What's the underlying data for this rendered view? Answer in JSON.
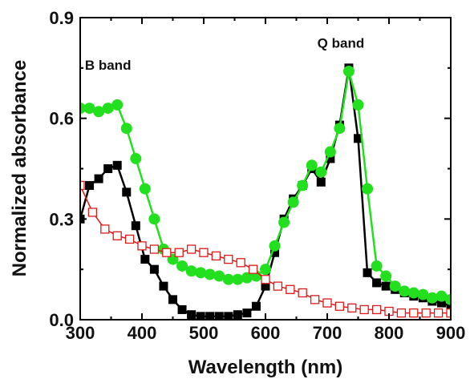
{
  "chart_data": {
    "type": "line",
    "title": "",
    "xlabel": "Wavelength (nm)",
    "ylabel": "Normalized absorbance",
    "xlim": [
      300,
      900
    ],
    "ylim": [
      0.0,
      0.9
    ],
    "x_ticks": [
      {
        "value": 300,
        "label": "300"
      },
      {
        "value": 400,
        "label": "400"
      },
      {
        "value": 500,
        "label": "500"
      },
      {
        "value": 600,
        "label": "600"
      },
      {
        "value": 700,
        "label": "700"
      },
      {
        "value": 800,
        "label": "800"
      },
      {
        "value": 900,
        "label": "900"
      }
    ],
    "y_ticks": [
      {
        "value": 0.0,
        "label": "0.0"
      },
      {
        "value": 0.3,
        "label": "0.3"
      },
      {
        "value": 0.6,
        "label": "0.6"
      },
      {
        "value": 0.9,
        "label": "0.9"
      }
    ],
    "grid": false,
    "legend": "none",
    "annotations": [
      {
        "text": "B band",
        "x": 345,
        "y": 0.745
      },
      {
        "text": "Q band",
        "x": 722,
        "y": 0.81
      }
    ],
    "series": [
      {
        "marker": "filled-square",
        "color": "#000000",
        "x": [
          300,
          315,
          330,
          345,
          360,
          375,
          390,
          405,
          420,
          435,
          450,
          465,
          480,
          495,
          510,
          525,
          540,
          555,
          570,
          585,
          600,
          615,
          630,
          645,
          660,
          675,
          690,
          705,
          720,
          735,
          750,
          765,
          780,
          795,
          810,
          825,
          840,
          855,
          870,
          885,
          900
        ],
        "y": [
          0.3,
          0.4,
          0.42,
          0.45,
          0.46,
          0.38,
          0.28,
          0.18,
          0.15,
          0.1,
          0.06,
          0.03,
          0.015,
          0.01,
          0.01,
          0.01,
          0.01,
          0.015,
          0.02,
          0.04,
          0.1,
          0.2,
          0.3,
          0.36,
          0.4,
          0.45,
          0.41,
          0.48,
          0.58,
          0.75,
          0.54,
          0.14,
          0.11,
          0.1,
          0.09,
          0.08,
          0.07,
          0.065,
          0.055,
          0.05,
          0.04
        ]
      },
      {
        "marker": "filled-circle",
        "color": "#22e01e",
        "line_color": "#22e01e",
        "x": [
          300,
          315,
          330,
          345,
          360,
          375,
          390,
          405,
          420,
          435,
          450,
          465,
          480,
          495,
          510,
          525,
          540,
          555,
          570,
          585,
          600,
          615,
          630,
          645,
          660,
          675,
          690,
          705,
          720,
          735,
          750,
          765,
          780,
          795,
          810,
          825,
          840,
          855,
          870,
          885,
          900
        ],
        "y": [
          0.63,
          0.63,
          0.62,
          0.63,
          0.64,
          0.57,
          0.48,
          0.39,
          0.3,
          0.21,
          0.18,
          0.16,
          0.145,
          0.14,
          0.135,
          0.13,
          0.12,
          0.12,
          0.125,
          0.13,
          0.15,
          0.22,
          0.29,
          0.35,
          0.4,
          0.46,
          0.44,
          0.5,
          0.57,
          0.74,
          0.64,
          0.39,
          0.16,
          0.13,
          0.1,
          0.085,
          0.08,
          0.075,
          0.065,
          0.07,
          0.06
        ]
      },
      {
        "marker": "open-square",
        "color": "#e01818",
        "x": [
          300,
          320,
          340,
          360,
          380,
          400,
          420,
          440,
          460,
          480,
          500,
          520,
          540,
          560,
          580,
          600,
          620,
          640,
          660,
          680,
          700,
          720,
          740,
          760,
          780,
          800,
          820,
          840,
          860,
          880,
          900
        ],
        "y": [
          0.4,
          0.32,
          0.27,
          0.25,
          0.24,
          0.22,
          0.21,
          0.2,
          0.2,
          0.21,
          0.2,
          0.19,
          0.18,
          0.17,
          0.15,
          0.12,
          0.1,
          0.09,
          0.08,
          0.06,
          0.05,
          0.04,
          0.035,
          0.03,
          0.03,
          0.025,
          0.02,
          0.02,
          0.02,
          0.02,
          0.02
        ]
      }
    ]
  }
}
